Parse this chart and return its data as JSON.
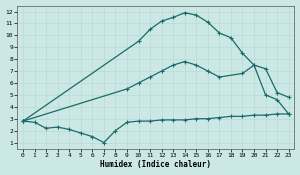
{
  "xlabel": "Humidex (Indice chaleur)",
  "bg_color": "#cce8e4",
  "grid_color": "#aed4cf",
  "line_color": "#1a6b6b",
  "xlim": [
    -0.5,
    23.5
  ],
  "ylim": [
    0.5,
    12.5
  ],
  "xticks": [
    0,
    1,
    2,
    3,
    4,
    5,
    6,
    7,
    8,
    9,
    10,
    11,
    12,
    13,
    14,
    15,
    16,
    17,
    18,
    19,
    20,
    21,
    22,
    23
  ],
  "yticks": [
    1,
    2,
    3,
    4,
    5,
    6,
    7,
    8,
    9,
    10,
    11,
    12
  ],
  "line1_x": [
    0,
    1,
    2,
    3,
    4,
    5,
    6,
    7,
    8,
    9,
    10,
    11,
    12,
    13,
    14,
    15,
    16,
    17,
    18,
    19,
    20,
    21,
    22,
    23
  ],
  "line1_y": [
    2.8,
    2.7,
    2.2,
    2.3,
    2.1,
    1.8,
    1.5,
    1.0,
    2.0,
    2.7,
    2.8,
    2.8,
    2.9,
    2.9,
    2.9,
    3.0,
    3.0,
    3.1,
    3.2,
    3.2,
    3.3,
    3.3,
    3.4,
    3.4
  ],
  "line2_x": [
    0,
    9,
    10,
    11,
    12,
    13,
    14,
    15,
    16,
    17,
    19,
    20,
    21,
    22,
    23
  ],
  "line2_y": [
    2.8,
    5.5,
    6.0,
    6.5,
    7.0,
    7.5,
    7.8,
    7.5,
    7.0,
    6.5,
    6.8,
    7.5,
    7.2,
    5.2,
    4.8
  ],
  "line3_x": [
    0,
    10,
    11,
    12,
    13,
    14,
    15,
    16,
    17,
    18,
    19,
    20,
    21,
    22,
    23
  ],
  "line3_y": [
    2.8,
    9.5,
    10.5,
    11.2,
    11.5,
    11.9,
    11.7,
    11.1,
    10.2,
    9.8,
    8.5,
    7.5,
    5.0,
    4.6,
    3.4
  ],
  "marker_size": 3.5,
  "line_width": 0.9
}
